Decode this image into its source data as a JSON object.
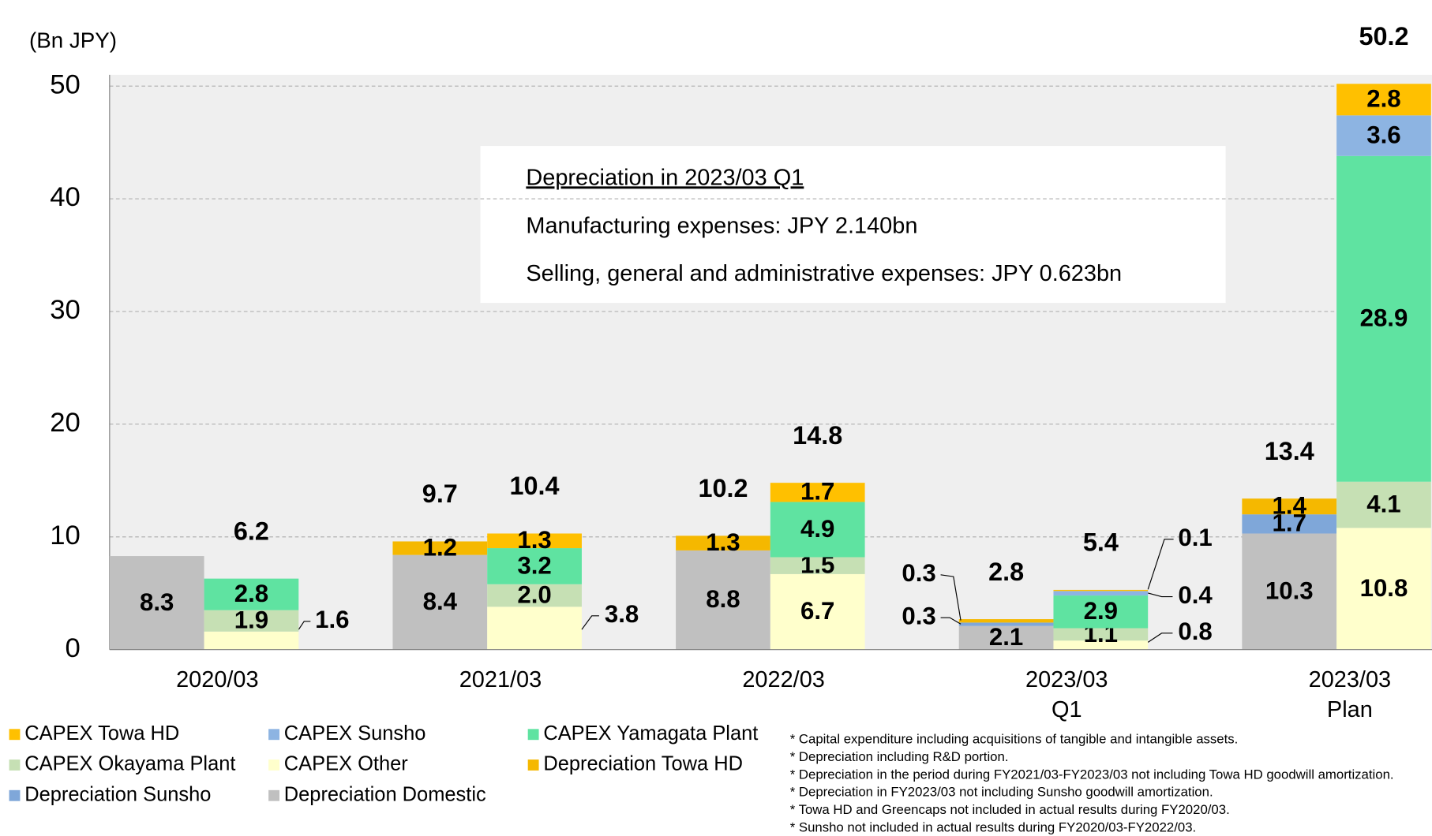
{
  "chart_data": {
    "type": "stacked_bar_pairs",
    "unit_label": "(Bn JPY)",
    "categories": [
      [
        "2020/03"
      ],
      [
        "2021/03"
      ],
      [
        "2022/03"
      ],
      [
        "2023/03",
        "Q1"
      ],
      [
        "2023/03",
        "Plan"
      ]
    ],
    "series": [
      {
        "name": "CAPEX Towa HD",
        "color": "#ffc000",
        "stack": 1,
        "values": [
          null,
          1.3,
          1.7,
          0.1,
          2.8
        ]
      },
      {
        "name": "CAPEX Sunsho",
        "color": "#8db4e2",
        "stack": 1,
        "values": [
          null,
          null,
          null,
          0.4,
          3.6
        ]
      },
      {
        "name": "CAPEX Yamagata Plant",
        "color": "#5fe3a1",
        "stack": 1,
        "values": [
          2.8,
          3.2,
          4.9,
          2.9,
          28.9
        ]
      },
      {
        "name": "CAPEX Okayama Plant",
        "color": "#c6e0b4",
        "stack": 1,
        "values": [
          1.9,
          2.0,
          1.5,
          1.1,
          4.1
        ]
      },
      {
        "name": "CAPEX Other",
        "color": "#ffffcc",
        "stack": 1,
        "values": [
          1.6,
          3.8,
          6.7,
          0.8,
          10.8
        ]
      },
      {
        "name": "Depreciation Towa HD",
        "color": "#f5b800",
        "stack": 0,
        "values": [
          null,
          1.2,
          1.3,
          0.3,
          1.4
        ]
      },
      {
        "name": "Depreciation Sunsho",
        "color": "#7fa7d9",
        "stack": 0,
        "values": [
          null,
          null,
          null,
          0.3,
          1.7
        ]
      },
      {
        "name": "Depreciation Domestic",
        "color": "#c0c0c0",
        "stack": 0,
        "values": [
          8.3,
          8.4,
          8.8,
          2.1,
          10.3
        ]
      }
    ],
    "totals": [
      [
        null,
        9.7,
        10.2,
        2.8,
        13.4
      ],
      [
        6.2,
        10.4,
        14.8,
        5.4,
        50.2
      ]
    ],
    "value_labels": [
      [
        null,
        "1.3",
        "1.7",
        "0.1",
        "2.8"
      ],
      [
        null,
        null,
        null,
        "0.4",
        "3.6"
      ],
      [
        "2.8",
        "3.2",
        "4.9",
        "2.9",
        "28.9"
      ],
      [
        "1.9",
        "2.0",
        "1.5",
        "1.1",
        "4.1"
      ],
      [
        "1.6",
        "3.8",
        "6.7",
        "0.8",
        "10.8"
      ],
      [
        null,
        "1.2",
        "1.3",
        "0.3",
        "1.4"
      ],
      [
        null,
        null,
        null,
        "0.3",
        "1.7"
      ],
      [
        "8.3",
        "8.4",
        "8.8",
        "2.1",
        "10.3"
      ]
    ],
    "ylim": [
      0,
      51
    ],
    "yticks": [
      0,
      10,
      20,
      30,
      40,
      50
    ],
    "grid": true,
    "annotation": {
      "title": "Depreciation in 2023/03 Q1",
      "lines": [
        "Manufacturing expenses:  JPY 2.140bn",
        "Selling, general and administrative expenses: JPY 0.623bn"
      ]
    },
    "footnotes": [
      "*  Capital expenditure including acquisitions of tangible and intangible assets.",
      "*  Depreciation including R&D portion.",
      "*  Depreciation in the period during FY2021/03-FY2023/03 not including Towa HD goodwill amortization.",
      "*  Depreciation in FY2023/03 not including Sunsho goodwill amortization.",
      "*  Towa HD and Greencaps not included in actual results during FY2020/03.",
      "*  Sunsho not included in actual results during FY2020/03-FY2022/03."
    ]
  }
}
